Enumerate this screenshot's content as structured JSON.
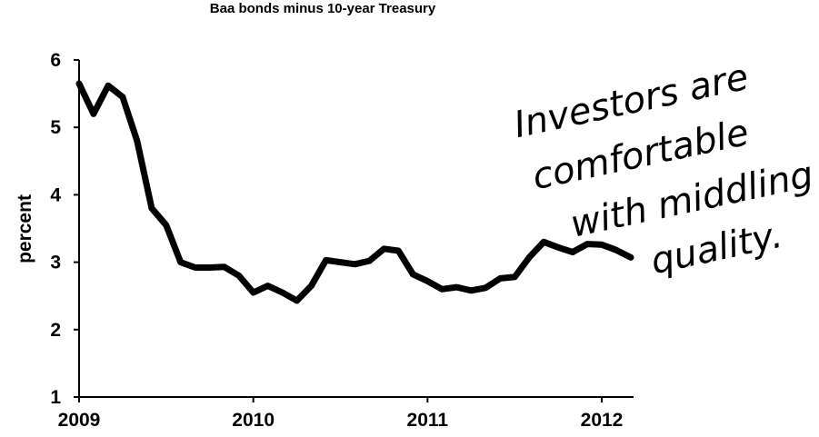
{
  "chart_data": {
    "type": "line",
    "title": "Baa bonds minus 10-year Treasury",
    "xlabel": "",
    "ylabel": "percent",
    "xlim": [
      2009,
      2012.2
    ],
    "ylim": [
      1,
      6
    ],
    "yticks": [
      "1",
      "2",
      "3",
      "4",
      "5",
      "6"
    ],
    "xticks": [
      {
        "value": 2009,
        "label": "2009"
      },
      {
        "value": 2010,
        "label": "2010"
      },
      {
        "value": 2011,
        "label": "2011"
      },
      {
        "value": 2012,
        "label": "2012"
      }
    ],
    "grid": false,
    "series": [
      {
        "color": "#000000",
        "x": [
          2009.0,
          2009.083,
          2009.167,
          2009.25,
          2009.333,
          2009.417,
          2009.5,
          2009.583,
          2009.667,
          2009.75,
          2009.833,
          2009.917,
          2010.0,
          2010.083,
          2010.167,
          2010.25,
          2010.333,
          2010.417,
          2010.5,
          2010.583,
          2010.667,
          2010.75,
          2010.833,
          2010.917,
          2011.0,
          2011.083,
          2011.167,
          2011.25,
          2011.333,
          2011.417,
          2011.5,
          2011.583,
          2011.667,
          2011.75,
          2011.833,
          2011.917,
          2012.0,
          2012.083,
          2012.167
        ],
        "y": [
          5.65,
          5.2,
          5.62,
          5.45,
          4.8,
          3.8,
          3.55,
          3.0,
          2.92,
          2.92,
          2.93,
          2.8,
          2.55,
          2.65,
          2.55,
          2.43,
          2.65,
          3.03,
          3.0,
          2.97,
          3.02,
          3.2,
          3.17,
          2.82,
          2.72,
          2.6,
          2.63,
          2.58,
          2.62,
          2.76,
          2.78,
          3.07,
          3.3,
          3.22,
          3.15,
          3.27,
          3.26,
          3.18,
          3.07
        ]
      }
    ],
    "annotation": {
      "lines": [
        "Investors are",
        "comfortable",
        "with middling",
        "quality."
      ]
    }
  }
}
